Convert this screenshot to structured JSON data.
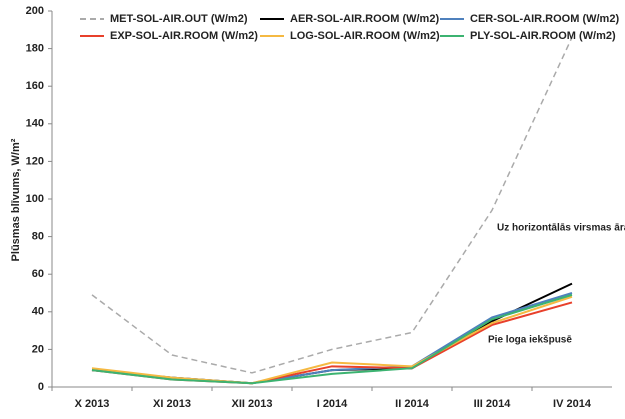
{
  "chart_data": {
    "type": "line",
    "y_label": "Plūsmas blīvums, W/m²",
    "categories": [
      "X 2013",
      "XI 2013",
      "XII 2013",
      "I 2014",
      "II 2014",
      "III 2014",
      "IV 2014"
    ],
    "series": [
      {
        "name": "MET-SOL-AIR.OUT (W/m2)",
        "color": "#aaaaaa",
        "dashed": true,
        "values": [
          49,
          17,
          7.5,
          20,
          29,
          94,
          186
        ]
      },
      {
        "name": "AER-SOL-AIR.ROOM (W/m2)",
        "color": "#000000",
        "values": [
          9,
          5,
          2,
          9,
          10,
          35,
          55
        ]
      },
      {
        "name": "CER-SOL-AIR.ROOM (W/m2)",
        "color": "#4f81bd",
        "values": [
          9,
          5,
          2,
          9,
          11,
          37,
          50
        ]
      },
      {
        "name": "EXP-SOL-AIR.ROOM (W/m2)",
        "color": "#e8402b",
        "values": [
          9,
          4,
          2,
          11,
          10,
          33,
          45
        ]
      },
      {
        "name": "LOG-SOL-AIR.ROOM (W/m2)",
        "color": "#f5b942",
        "values": [
          10,
          5,
          2,
          13,
          11,
          34,
          48
        ]
      },
      {
        "name": "PLY-SOL-AIR.ROOM (W/m2)",
        "color": "#3cb371",
        "values": [
          9,
          4,
          2,
          7,
          10,
          36,
          49
        ]
      }
    ],
    "ylim": [
      0,
      200
    ],
    "yticks": [
      0,
      20,
      40,
      60,
      80,
      100,
      120,
      140,
      160,
      180,
      200
    ],
    "annotations": [
      "Uz horizontālās virsmas ārā",
      "Pie loga iekšpusē"
    ]
  }
}
